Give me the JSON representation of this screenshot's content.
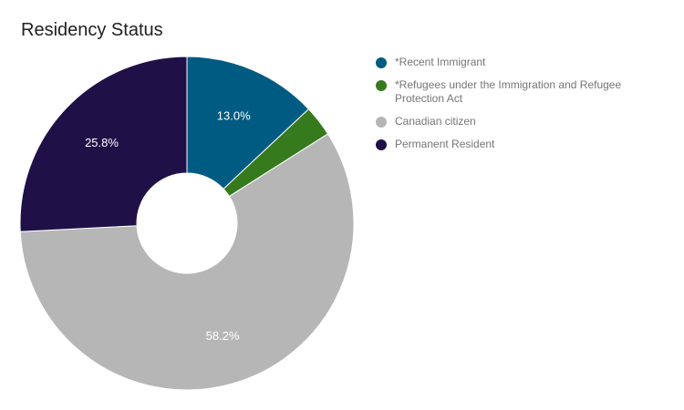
{
  "chart_data": {
    "type": "pie",
    "title": "Residency Status",
    "legend_position": "right",
    "donut": true,
    "slices": [
      {
        "label": "*Recent Immigrant",
        "value": 13.0,
        "display": "13.0%",
        "color": "#005b82"
      },
      {
        "label": "*Refugees under the Immigration and Refugee Protection Act",
        "value": 3.0,
        "display": "",
        "color": "#367a1e"
      },
      {
        "label": "Canadian citizen",
        "value": 58.2,
        "display": "58.2%",
        "color": "#b6b6b6"
      },
      {
        "label": "Permanent Resident",
        "value": 25.8,
        "display": "25.8%",
        "color": "#201048"
      }
    ]
  }
}
